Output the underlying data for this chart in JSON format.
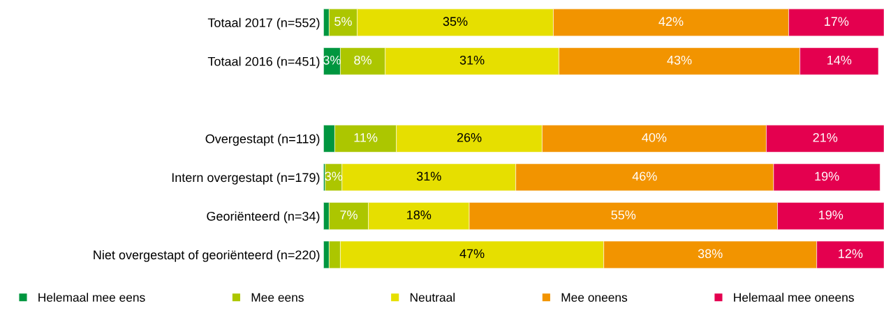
{
  "chart_data": {
    "type": "bar",
    "orientation": "horizontal",
    "stacked": true,
    "categories": [
      "Totaal 2017 (n=552)",
      "Totaal 2016 (n=451)",
      null,
      "Overgestapt (n=119)",
      "Intern overgestapt (n=179)",
      "Georiënteerd (n=34)",
      "Niet overgestapt of georiënteerd (n=220)"
    ],
    "xlim": [
      0,
      100
    ],
    "tick_labels": "y",
    "grid": false,
    "legend": "bottom",
    "marker": "square",
    "series": [
      {
        "name": "Helemaal mee eens",
        "color": "#00963f",
        "values": [
          1,
          3,
          null,
          2,
          0.3,
          1,
          1
        ],
        "value_labels": [
          null,
          "3%",
          null,
          null,
          null,
          null,
          null
        ]
      },
      {
        "name": "Mee eens",
        "color": "#acc600",
        "values": [
          5,
          8,
          null,
          11,
          3,
          7,
          2
        ],
        "value_labels": [
          "5%",
          "8%",
          null,
          "11%",
          "3%",
          "7%",
          null
        ]
      },
      {
        "name": "Neutraal",
        "color": "#e6df00",
        "values": [
          35,
          31,
          null,
          26,
          31,
          18,
          47
        ],
        "value_labels": [
          "35%",
          "31%",
          null,
          "26%",
          "31%",
          "18%",
          "47%"
        ]
      },
      {
        "name": "Mee oneens",
        "color": "#f29400",
        "values": [
          42,
          43,
          null,
          40,
          46,
          55,
          38
        ],
        "value_labels": [
          "42%",
          "43%",
          null,
          "40%",
          "46%",
          "55%",
          "38%"
        ]
      },
      {
        "name": "Helemaal mee oneens",
        "color": "#e4004f",
        "values": [
          17,
          14,
          null,
          21,
          19,
          19,
          12
        ],
        "value_labels": [
          "17%",
          "14%",
          null,
          "21%",
          "19%",
          "19%",
          "12%"
        ]
      }
    ]
  }
}
